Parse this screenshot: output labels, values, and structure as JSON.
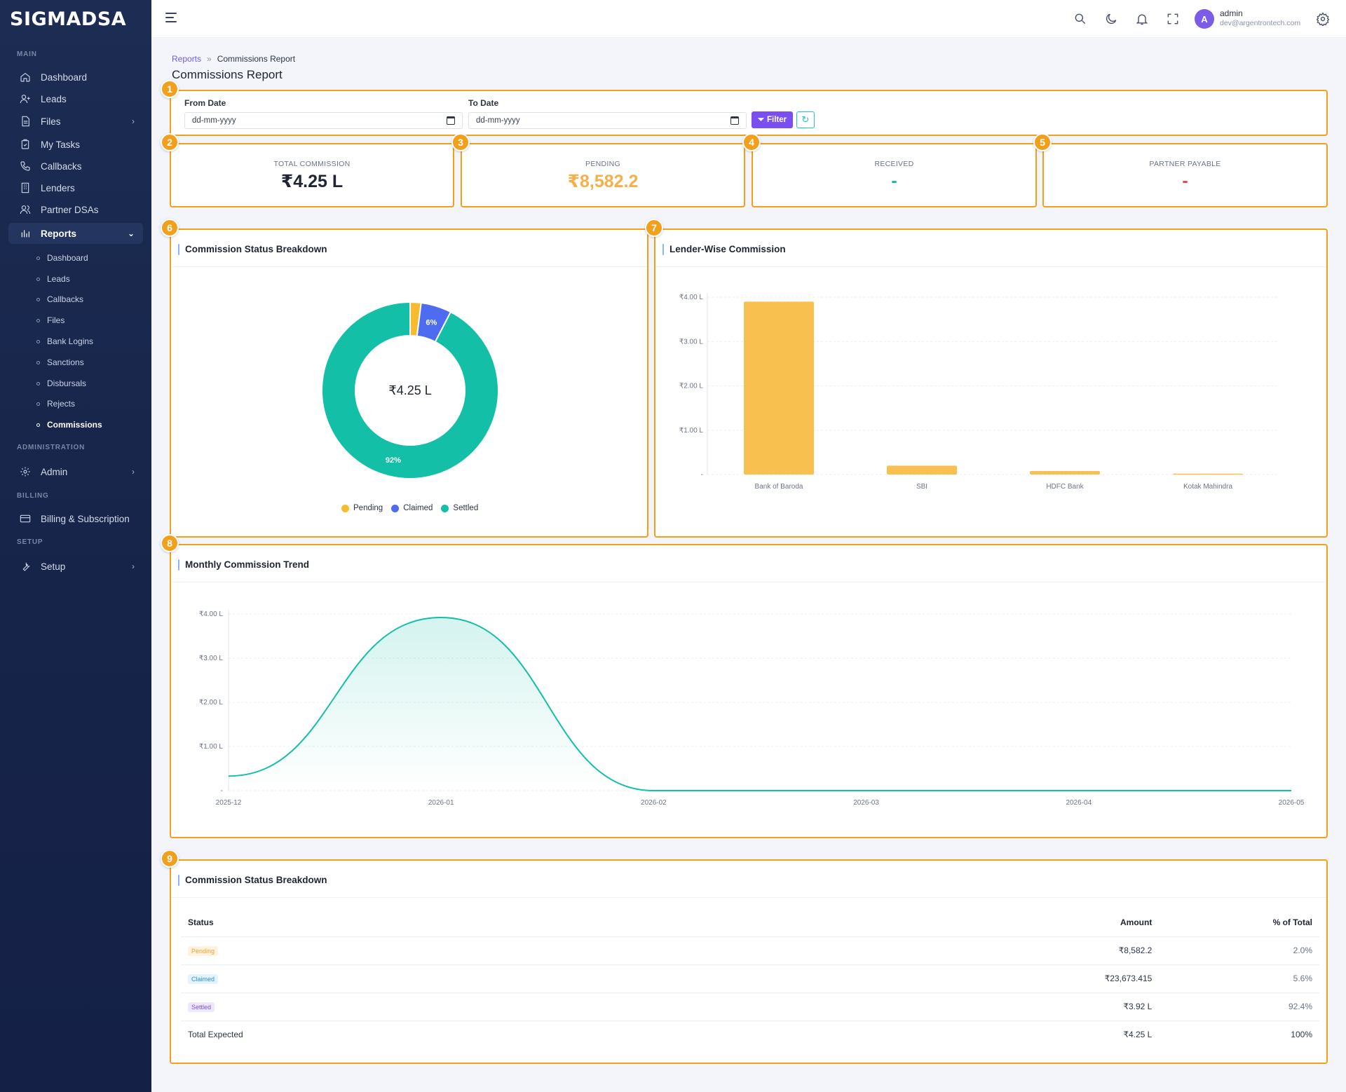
{
  "brand": "SIGMADSA",
  "sidebar": {
    "sections": {
      "main": "MAIN",
      "administration": "ADMINISTRATION",
      "billing": "BILLING",
      "setup": "SETUP"
    },
    "items": {
      "dashboard": "Dashboard",
      "leads": "Leads",
      "files": "Files",
      "my_tasks": "My Tasks",
      "callbacks": "Callbacks",
      "lenders": "Lenders",
      "partner_dsas": "Partner DSAs",
      "reports": "Reports",
      "admin": "Admin",
      "billing": "Billing & Subscription",
      "setup": "Setup"
    },
    "report_subitems": [
      "Dashboard",
      "Leads",
      "Callbacks",
      "Files",
      "Bank Logins",
      "Sanctions",
      "Disbursals",
      "Rejects",
      "Commissions"
    ]
  },
  "topbar": {
    "avatar_letter": "A",
    "user_name": "admin",
    "user_email": "dev@argentrontech.com"
  },
  "breadcrumb": {
    "parent": "Reports",
    "separator": "»",
    "current": "Commissions Report"
  },
  "page_title": "Commissions Report",
  "highlight_badges": [
    "1",
    "2",
    "3",
    "4",
    "5",
    "6",
    "7",
    "8",
    "9"
  ],
  "filters": {
    "from_label": "From Date",
    "from_placeholder": "dd-mm-yyyy",
    "to_label": "To Date",
    "to_placeholder": "dd-mm-yyyy",
    "filter_button": "Filter"
  },
  "stats": {
    "total": {
      "label": "TOTAL COMMISSION",
      "value": "₹4.25 L",
      "color": "#1f2533"
    },
    "pending": {
      "label": "PENDING",
      "value": "₹8,582.2",
      "color": "#f4b04a"
    },
    "received": {
      "label": "RECEIVED",
      "value": "-",
      "color": "#17c0a0"
    },
    "partner": {
      "label": "PARTNER PAYABLE",
      "value": "-",
      "color": "#e5484d"
    }
  },
  "status_card": {
    "title": "Commission Status Breakdown",
    "center_label": "₹4.25 L",
    "legend": [
      "Pending",
      "Claimed",
      "Settled"
    ],
    "slice_labels": [
      "6%",
      "92%"
    ]
  },
  "lender_card": {
    "title": "Lender-Wise Commission"
  },
  "trend_card": {
    "title": "Monthly Commission Trend"
  },
  "table_card": {
    "title": "Commission Status Breakdown",
    "headers": {
      "status": "Status",
      "amount": "Amount",
      "pct": "% of Total"
    },
    "rows": [
      {
        "status": "Pending",
        "amount": "₹8,582.2",
        "pct": "2.0%"
      },
      {
        "status": "Claimed",
        "amount": "₹23,673.415",
        "pct": "5.6%"
      },
      {
        "status": "Settled",
        "amount": "₹3.92 L",
        "pct": "92.4%"
      }
    ],
    "total": {
      "label": "Total Expected",
      "amount": "₹4.25 L",
      "pct": "100%"
    }
  },
  "colors": {
    "pending": "#f7bb2f",
    "claimed": "#4d6cf0",
    "settled": "#13bfa6",
    "bar": "#f8c14f",
    "accent": "#7a4ef0",
    "highlight": "#f2a01c"
  },
  "chart_data": [
    {
      "type": "pie",
      "title": "Commission Status Breakdown",
      "categories": [
        "Pending",
        "Claimed",
        "Settled"
      ],
      "values": [
        2.0,
        5.6,
        92.4
      ],
      "unit": "% of total",
      "center_text": "₹4.25 L",
      "donut": true
    },
    {
      "type": "bar",
      "title": "Lender-Wise Commission",
      "categories": [
        "Bank of Baroda",
        "SBI",
        "HDFC Bank",
        "Kotak Mahindra"
      ],
      "values": [
        3.9,
        0.2,
        0.08,
        0.02
      ],
      "unit": "₹ Lakh",
      "ylim": [
        0,
        4
      ],
      "yticks": [
        "-",
        "₹1.00 L",
        "₹2.00 L",
        "₹3.00 L",
        "₹4.00 L"
      ],
      "grid": true
    },
    {
      "type": "area",
      "title": "Monthly Commission Trend",
      "categories": [
        "2025-12",
        "2026-01",
        "2026-02",
        "2026-03",
        "2026-04",
        "2026-05"
      ],
      "values": [
        0.33,
        3.92,
        0,
        0,
        0,
        0
      ],
      "unit": "₹ Lakh",
      "ylim": [
        0,
        4
      ],
      "yticks": [
        "-",
        "₹1.00 L",
        "₹2.00 L",
        "₹3.00 L",
        "₹4.00 L"
      ],
      "smooth": true,
      "grid": true
    }
  ]
}
